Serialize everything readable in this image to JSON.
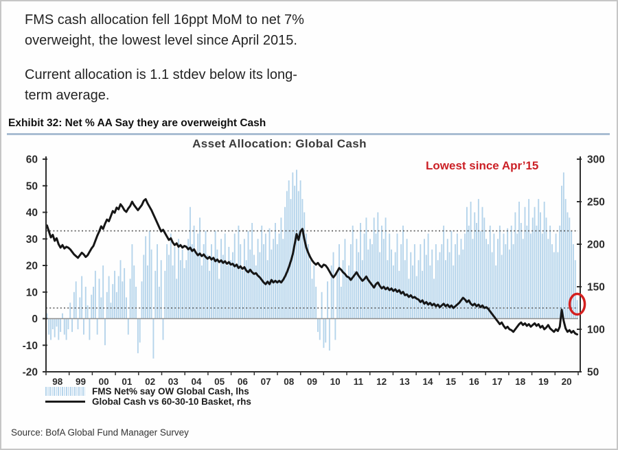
{
  "header": {
    "paragraph1": "FMS cash allocation fell 16ppt MoM to net 7%\noverweight, the lowest level since April 2015.",
    "paragraph2": "Current allocation is 1.1 stdev below its long-\nterm average.",
    "exhibit_title": "Exhibit 32: Net % AA Say they are overweight Cash"
  },
  "footer": {
    "source": "Source: BofA Global Fund Manager Survey"
  },
  "chart_data": {
    "type": "bar+line",
    "title": "Asset Allocation: Global Cash",
    "annotation": "Lowest since Apr’15",
    "annotation_color": "#cb2026",
    "frequency": "monthly",
    "x_start": "1998-01",
    "x_end": "2020-11",
    "x_tick_labels": [
      "98",
      "99",
      "00",
      "01",
      "02",
      "03",
      "04",
      "05",
      "06",
      "07",
      "08",
      "09",
      "10",
      "11",
      "12",
      "13",
      "14",
      "15",
      "16",
      "17",
      "18",
      "19",
      "20"
    ],
    "left_axis": {
      "range": [
        -20,
        60
      ],
      "ticks": [
        60,
        50,
        40,
        30,
        20,
        10,
        0,
        -10,
        -20
      ]
    },
    "right_axis": {
      "range": [
        50,
        300
      ],
      "ticks": [
        300,
        250,
        200,
        150,
        100,
        50
      ]
    },
    "reference_lines_left_axis": [
      33,
      4
    ],
    "zero_line_left_axis": 0,
    "grid": "off",
    "legend_position": "bottom-left",
    "highlight": {
      "shape": "ellipse",
      "color": "#d4201f",
      "note": "last bar circled",
      "value_lhs": 7
    },
    "series": [
      {
        "name": "FMS Net% say OW Global Cash, lhs",
        "type": "bar",
        "axis": "left",
        "color": "#b5d4eb",
        "values": [
          2,
          -6,
          -8,
          -4,
          -7,
          -3,
          -8,
          -5,
          2,
          -6,
          -8,
          -4,
          6,
          -5,
          10,
          14,
          -4,
          8,
          16,
          -6,
          12,
          5,
          -8,
          9,
          12,
          18,
          -6,
          15,
          8,
          20,
          -10,
          10,
          16,
          6,
          13,
          18,
          10,
          16,
          22,
          14,
          19,
          8,
          -6,
          15,
          28,
          20,
          12,
          -13,
          -9,
          14,
          24,
          31,
          20,
          33,
          26,
          -15,
          18,
          28,
          12,
          22,
          -8,
          18,
          28,
          24,
          32,
          20,
          27,
          15,
          30,
          22,
          26,
          19,
          22,
          30,
          42,
          28,
          35,
          25,
          32,
          38,
          20,
          28,
          33,
          24,
          18,
          28,
          22,
          33,
          26,
          15,
          30,
          24,
          32,
          20,
          27,
          22,
          25,
          32,
          20,
          35,
          28,
          18,
          30,
          22,
          33,
          26,
          36,
          24,
          20,
          30,
          25,
          35,
          28,
          32,
          22,
          34,
          26,
          30,
          36,
          28,
          32,
          38,
          30,
          42,
          48,
          52,
          45,
          55,
          50,
          56,
          48,
          52,
          45,
          40,
          32,
          28,
          22,
          15,
          20,
          12,
          -5,
          -8,
          10,
          -11,
          -9,
          14,
          -12,
          20,
          25,
          -8,
          18,
          28,
          12,
          22,
          30,
          16,
          20,
          28,
          35,
          18,
          30,
          25,
          36,
          22,
          32,
          38,
          26,
          30,
          28,
          38,
          32,
          40,
          25,
          35,
          30,
          38,
          22,
          32,
          26,
          20,
          25,
          32,
          18,
          28,
          35,
          22,
          30,
          15,
          25,
          20,
          28,
          16,
          22,
          28,
          18,
          30,
          24,
          32,
          20,
          26,
          15,
          28,
          22,
          25,
          28,
          35,
          22,
          30,
          25,
          33,
          20,
          28,
          32,
          24,
          30,
          26,
          32,
          42,
          35,
          44,
          30,
          40,
          36,
          45,
          33,
          42,
          38,
          30,
          28,
          35,
          25,
          32,
          20,
          30,
          35,
          24,
          32,
          28,
          34,
          26,
          35,
          28,
          40,
          32,
          44,
          36,
          30,
          42,
          35,
          45,
          32,
          38,
          42,
          35,
          45,
          40,
          32,
          44,
          38,
          30,
          35,
          28,
          25,
          32,
          25,
          35,
          50,
          55,
          45,
          40,
          38,
          33,
          28,
          22,
          7
        ]
      },
      {
        "name": "Global Cash vs 60-30-10 Basket, rhs",
        "type": "line",
        "axis": "right",
        "color": "#161616",
        "values": [
          222,
          215,
          208,
          211,
          204,
          207,
          200,
          196,
          199,
          195,
          197,
          196,
          194,
          191,
          188,
          186,
          184,
          187,
          190,
          188,
          185,
          187,
          191,
          195,
          198,
          204,
          210,
          215,
          221,
          218,
          224,
          229,
          227,
          233,
          239,
          237,
          243,
          241,
          247,
          244,
          240,
          238,
          242,
          245,
          250,
          246,
          243,
          240,
          243,
          246,
          251,
          253,
          248,
          244,
          240,
          235,
          230,
          225,
          220,
          215,
          217,
          213,
          209,
          205,
          207,
          202,
          199,
          201,
          197,
          199,
          196,
          198,
          197,
          194,
          196,
          192,
          194,
          190,
          187,
          189,
          186,
          188,
          185,
          183,
          185,
          182,
          184,
          180,
          182,
          179,
          181,
          178,
          180,
          177,
          179,
          176,
          177,
          174,
          176,
          172,
          174,
          171,
          173,
          169,
          167,
          170,
          167,
          165,
          166,
          163,
          161,
          158,
          155,
          153,
          156,
          153,
          158,
          155,
          157,
          155,
          157,
          155,
          158,
          162,
          167,
          173,
          180,
          188,
          200,
          212,
          205,
          215,
          218,
          206,
          196,
          190,
          185,
          181,
          178,
          176,
          178,
          175,
          173,
          176,
          175,
          172,
          168,
          164,
          161,
          164,
          168,
          172,
          170,
          167,
          165,
          162,
          161,
          158,
          161,
          164,
          167,
          163,
          160,
          157,
          159,
          162,
          158,
          155,
          152,
          149,
          153,
          155,
          151,
          148,
          150,
          147,
          149,
          146,
          148,
          145,
          147,
          144,
          146,
          142,
          144,
          140,
          141,
          138,
          140,
          137,
          138,
          136,
          135,
          132,
          134,
          130,
          132,
          129,
          131,
          128,
          130,
          127,
          129,
          126,
          128,
          130,
          127,
          129,
          126,
          128,
          125,
          127,
          129,
          131,
          134,
          137,
          135,
          132,
          134,
          130,
          128,
          130,
          127,
          129,
          126,
          128,
          125,
          126,
          124,
          121,
          118,
          115,
          112,
          109,
          106,
          108,
          104,
          101,
          103,
          100,
          99,
          97,
          100,
          103,
          106,
          108,
          105,
          107,
          104,
          106,
          103,
          105,
          107,
          104,
          106,
          102,
          104,
          100,
          102,
          105,
          101,
          99,
          97,
          100,
          98,
          103,
          123,
          110,
          101,
          97,
          99,
          96,
          98,
          95,
          94
        ]
      }
    ]
  }
}
